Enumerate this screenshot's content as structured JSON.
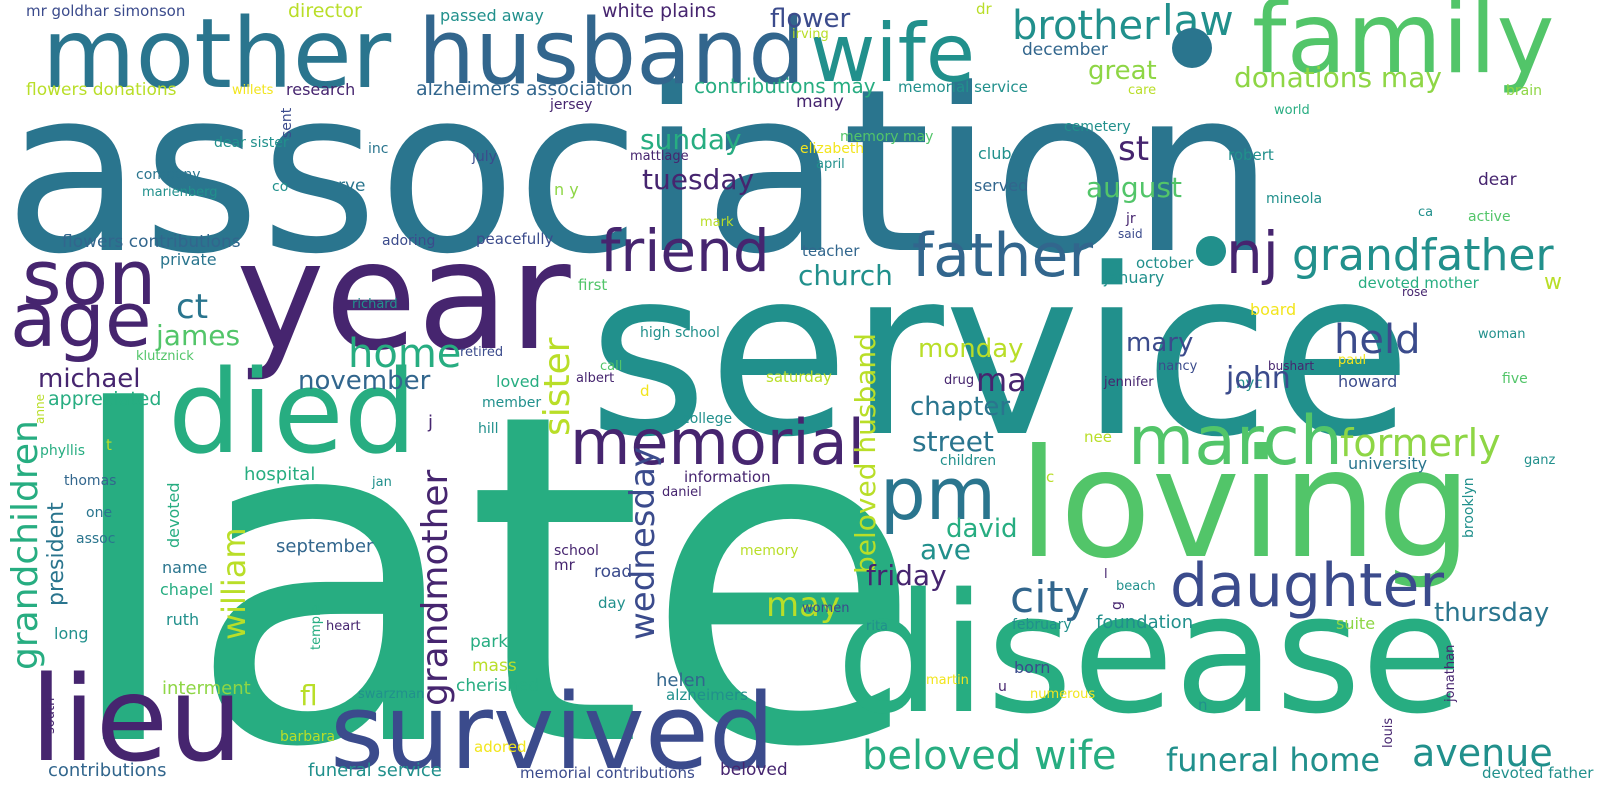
{
  "palette": {
    "deep_purple": "#46256f",
    "indigo": "#3b4b8c",
    "blue": "#32668d",
    "steel_teal": "#2a758e",
    "teal": "#21908c",
    "green_teal": "#27ad81",
    "green": "#52c569",
    "lime": "#8ed645",
    "yellow_green": "#b9de28",
    "yellow": "#f2e51d",
    "background": "#ffffff"
  },
  "words": [
    "association",
    "late",
    "service",
    "year",
    "mother",
    "husband",
    "wife",
    "family",
    "loving",
    "disease",
    "died",
    "son",
    "age",
    "lieu",
    "survived",
    "memorial",
    "friend",
    "father",
    "nj",
    "grandfather",
    "brother",
    "law",
    "pm",
    "march",
    "daughter",
    "city",
    "beloved wife",
    "funeral home",
    "avenue",
    "held",
    "formerly",
    "grandchildren",
    "grandmother",
    "beloved husband",
    "sister",
    "wednesday",
    "william",
    "home",
    "november",
    "michael",
    "james",
    "ct",
    "church",
    "flower",
    "great",
    "donations may",
    "contributions may",
    "alzheimers association",
    "white plains",
    "director",
    "passed away",
    "mr goldhar simonson",
    "flowers donations",
    "research",
    "memorial service",
    "december",
    "dr",
    "irving",
    "willets",
    "sent",
    "jersey",
    "many",
    "st",
    "sunday",
    "tuesday",
    "august",
    "memory may",
    "cemetery",
    "club",
    "served",
    "robert",
    "dear",
    "world",
    "brain",
    "care",
    "active",
    "mineola",
    "ca",
    "jr",
    "said",
    "teacher",
    "october",
    "january",
    "devoted mother",
    "rose",
    "w",
    "board",
    "woman",
    "paul",
    "bushart",
    "nancy",
    "howard",
    "jennifer",
    "five",
    "ganz",
    "university",
    "nyc",
    "drug",
    "chapter",
    "ma",
    "john",
    "mary",
    "monday",
    "saturday",
    "street",
    "nee",
    "children",
    "david",
    "ave",
    "friday",
    "may",
    "thursday",
    "foundation",
    "suite",
    "february",
    "rita",
    "women",
    "born",
    "u",
    "numerous",
    "martin",
    "n",
    "jonathan",
    "louis",
    "brooklyn",
    "beach",
    "l",
    "g",
    "c",
    "funeral service",
    "memorial contributions",
    "beloved",
    "devoted father",
    "contributions",
    "south",
    "barbara",
    "interment",
    "fl",
    "mass",
    "adored",
    "cherished",
    "park",
    "helen",
    "alzheimers",
    "swarzman",
    "temple",
    "heart",
    "ruth",
    "chapel",
    "name",
    "long",
    "devoted",
    "president",
    "hospital",
    "assoc",
    "one",
    "thomas",
    "phyllis",
    "t",
    "anne",
    "appreciated",
    "loved",
    "member",
    "hill",
    "j",
    "college",
    "information",
    "daniel",
    "jan",
    "memory",
    "school",
    "mr",
    "road",
    "day",
    "september",
    "call",
    "albert",
    "d",
    "retired",
    "richard",
    "klutznick",
    "private",
    "flowers contributions",
    "adoring",
    "peacefully",
    "first",
    "high school",
    "company",
    "marienberg",
    "co",
    "rye",
    "n y",
    "dear sister",
    "inc",
    "july",
    "mattlage",
    "elizabeth",
    "april",
    "mark"
  ]
}
